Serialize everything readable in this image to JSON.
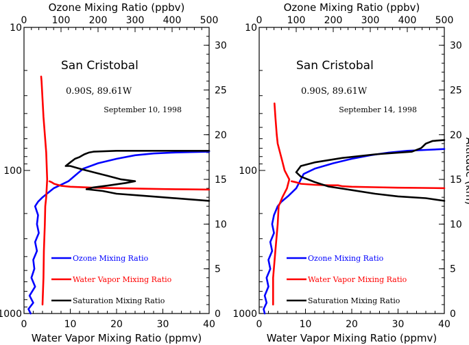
{
  "chart_data": [
    {
      "type": "line",
      "station": "San Cristobal",
      "coords": "0.90S, 89.61W",
      "date": "September 10, 1998",
      "top_axis": {
        "label": "Ozone Mixing Ratio (ppbv)",
        "range": [
          0,
          500
        ],
        "ticks": [
          "0",
          "100",
          "200",
          "300",
          "400",
          "500"
        ]
      },
      "bottom_axis": {
        "label": "Water Vapor Mixing Ratio (ppmv)",
        "range": [
          0,
          40
        ],
        "ticks": [
          "0",
          "10",
          "20",
          "30",
          "40"
        ]
      },
      "left_axis": {
        "label": "",
        "scale": "log",
        "range": [
          1000,
          10
        ],
        "ticks": [
          "1000",
          "100",
          "10"
        ]
      },
      "right_axis": {
        "label": "",
        "range": [
          0,
          32
        ],
        "ticks": [
          "0",
          "5",
          "10",
          "15",
          "20",
          "25",
          "30"
        ]
      },
      "legend": [
        {
          "name": "Ozone Mixing Ratio",
          "color": "#0000ff"
        },
        {
          "name": "Water Vapor Mixing Ratio",
          "color": "#ff0000"
        },
        {
          "name": "Saturation Mixing Ratio",
          "color": "#000000"
        }
      ],
      "series": [
        {
          "name": "Ozone Mixing Ratio",
          "color": "#0000ff",
          "x_axis": "top",
          "y_axis": "right",
          "points": [
            [
              18,
              0
            ],
            [
              12,
              0.5
            ],
            [
              25,
              1.2
            ],
            [
              15,
              2
            ],
            [
              30,
              3
            ],
            [
              20,
              4
            ],
            [
              28,
              5
            ],
            [
              25,
              6
            ],
            [
              35,
              7
            ],
            [
              30,
              8
            ],
            [
              40,
              9
            ],
            [
              35,
              10
            ],
            [
              38,
              11
            ],
            [
              30,
              12
            ],
            [
              38,
              12.5
            ],
            [
              50,
              13
            ],
            [
              80,
              14
            ],
            [
              100,
              14.4
            ],
            [
              120,
              14.8
            ],
            [
              140,
              15.5
            ],
            [
              160,
              16.2
            ],
            [
              200,
              16.8
            ],
            [
              250,
              17.3
            ],
            [
              300,
              17.7
            ],
            [
              350,
              17.9
            ],
            [
              400,
              18
            ],
            [
              450,
              18.05
            ],
            [
              500,
              18.1
            ]
          ]
        },
        {
          "name": "Water Vapor Mixing Ratio",
          "color": "#ff0000",
          "x_axis": "bottom",
          "y_axis": "right",
          "points": [
            [
              4,
              1
            ],
            [
              4.2,
              4
            ],
            [
              4.3,
              7
            ],
            [
              4.5,
              10
            ],
            [
              4.6,
              12
            ],
            [
              4.8,
              13
            ],
            [
              5,
              15
            ],
            [
              4.8,
              18
            ],
            [
              4.5,
              20
            ],
            [
              4.2,
              22
            ],
            [
              4,
              24
            ],
            [
              3.8,
              26
            ],
            [
              3.7,
              26.5
            ]
          ]
        },
        {
          "name": "Water Vapor Mixing Ratio",
          "color": "#ff0000",
          "x_axis": "bottom",
          "y_axis": "left",
          "points": [
            [
              5.5,
              119
            ],
            [
              6,
              121
            ],
            [
              6.5,
              124
            ],
            [
              8,
              128
            ],
            [
              10,
              130
            ],
            [
              15,
              132
            ],
            [
              20,
              133
            ],
            [
              25,
              134
            ],
            [
              30,
              135
            ],
            [
              35,
              135.5
            ],
            [
              40,
              136
            ]
          ]
        },
        {
          "name": "Saturation Mixing Ratio",
          "color": "#000000",
          "x_axis": "bottom",
          "y_axis": "right",
          "points": [
            [
              40,
              12.6
            ],
            [
              35,
              12.8
            ],
            [
              30,
              13
            ],
            [
              25,
              13.2
            ],
            [
              20,
              13.4
            ],
            [
              17,
              13.7
            ],
            [
              13.5,
              13.9
            ],
            [
              15,
              14.1
            ],
            [
              18,
              14.3
            ],
            [
              22,
              14.6
            ],
            [
              24,
              14.8
            ],
            [
              21,
              15
            ],
            [
              18,
              15.4
            ],
            [
              15,
              15.8
            ],
            [
              12,
              16.2
            ],
            [
              10,
              16.5
            ],
            [
              9,
              16.5
            ],
            [
              10,
              16.9
            ],
            [
              11,
              17.3
            ],
            [
              12,
              17.5
            ],
            [
              13,
              17.8
            ],
            [
              14,
              18
            ],
            [
              15,
              18.1
            ],
            [
              20,
              18.2
            ],
            [
              30,
              18.2
            ],
            [
              40,
              18.2
            ]
          ]
        }
      ]
    },
    {
      "type": "line",
      "station": "San Cristobal",
      "coords": "0.90S, 89.61W",
      "date": "September 14, 1998",
      "top_axis": {
        "label": "Ozone Mixing Ratio (ppbv)",
        "range": [
          0,
          500
        ],
        "ticks": [
          "0",
          "100",
          "200",
          "300",
          "400",
          "500"
        ]
      },
      "bottom_axis": {
        "label": "Water Vapor Mixing Ratio (ppmv)",
        "range": [
          0,
          40
        ],
        "ticks": [
          "0",
          "10",
          "20",
          "30",
          "40"
        ]
      },
      "left_axis": {
        "label": "",
        "scale": "log",
        "range": [
          1000,
          10
        ],
        "ticks": [
          "1000",
          "100",
          "10"
        ]
      },
      "right_axis": {
        "label": "Altitude (km)",
        "range": [
          0,
          32
        ],
        "ticks": [
          "0",
          "5",
          "10",
          "15",
          "20",
          "25",
          "30"
        ]
      },
      "legend": [
        {
          "name": "Ozone Mixing Ratio",
          "color": "#0000ff"
        },
        {
          "name": "Water Vapor Mixing Ratio",
          "color": "#ff0000"
        },
        {
          "name": "Saturation Mixing Ratio",
          "color": "#000000"
        }
      ],
      "series": [
        {
          "name": "Ozone Mixing Ratio",
          "color": "#0000ff",
          "x_axis": "top",
          "y_axis": "right",
          "points": [
            [
              15,
              0
            ],
            [
              12,
              0.5
            ],
            [
              20,
              1.2
            ],
            [
              15,
              2
            ],
            [
              25,
              3
            ],
            [
              20,
              4
            ],
            [
              30,
              5
            ],
            [
              25,
              6
            ],
            [
              35,
              7
            ],
            [
              30,
              8
            ],
            [
              40,
              9
            ],
            [
              35,
              10
            ],
            [
              40,
              11
            ],
            [
              50,
              12
            ],
            [
              60,
              12.5
            ],
            [
              80,
              13.2
            ],
            [
              100,
              14
            ],
            [
              110,
              14.8
            ],
            [
              120,
              15.6
            ],
            [
              150,
              16.2
            ],
            [
              200,
              16.8
            ],
            [
              250,
              17.3
            ],
            [
              300,
              17.7
            ],
            [
              350,
              18
            ],
            [
              400,
              18.2
            ],
            [
              450,
              18.3
            ],
            [
              500,
              18.4
            ]
          ]
        },
        {
          "name": "Water Vapor Mixing Ratio",
          "color": "#ff0000",
          "x_axis": "bottom",
          "y_axis": "right",
          "points": [
            [
              3,
              1
            ],
            [
              3,
              4
            ],
            [
              3.5,
              7
            ],
            [
              4,
              10
            ],
            [
              4.2,
              12
            ],
            [
              5,
              13
            ],
            [
              6,
              14
            ],
            [
              6.5,
              15
            ],
            [
              5.5,
              16
            ],
            [
              5,
              17
            ],
            [
              4.5,
              18
            ],
            [
              4,
              19
            ],
            [
              3.8,
              20
            ],
            [
              3.5,
              22
            ],
            [
              3.3,
              23.5
            ]
          ]
        },
        {
          "name": "Water Vapor Mixing Ratio",
          "color": "#ff0000",
          "x_axis": "bottom",
          "y_axis": "left",
          "points": [
            [
              7,
              119
            ],
            [
              8,
              121
            ],
            [
              9,
              124
            ],
            [
              12,
              126
            ],
            [
              15,
              127
            ],
            [
              17,
              127
            ],
            [
              18,
              129
            ],
            [
              20,
              130
            ],
            [
              25,
              131
            ],
            [
              30,
              132
            ],
            [
              35,
              132.5
            ],
            [
              40,
              133
            ]
          ]
        },
        {
          "name": "Saturation Mixing Ratio",
          "color": "#000000",
          "x_axis": "bottom",
          "y_axis": "right",
          "points": [
            [
              40,
              12.6
            ],
            [
              36,
              12.9
            ],
            [
              30,
              13.1
            ],
            [
              25,
              13.4
            ],
            [
              20,
              13.8
            ],
            [
              15,
              14.2
            ],
            [
              12,
              14.7
            ],
            [
              9,
              15.3
            ],
            [
              8,
              15.8
            ],
            [
              9,
              16.5
            ],
            [
              12,
              16.9
            ],
            [
              18,
              17.4
            ],
            [
              25,
              17.8
            ],
            [
              33,
              18.1
            ],
            [
              35,
              18.5
            ],
            [
              36,
              19
            ],
            [
              37.5,
              19.3
            ],
            [
              40,
              19.4
            ]
          ]
        }
      ]
    }
  ]
}
